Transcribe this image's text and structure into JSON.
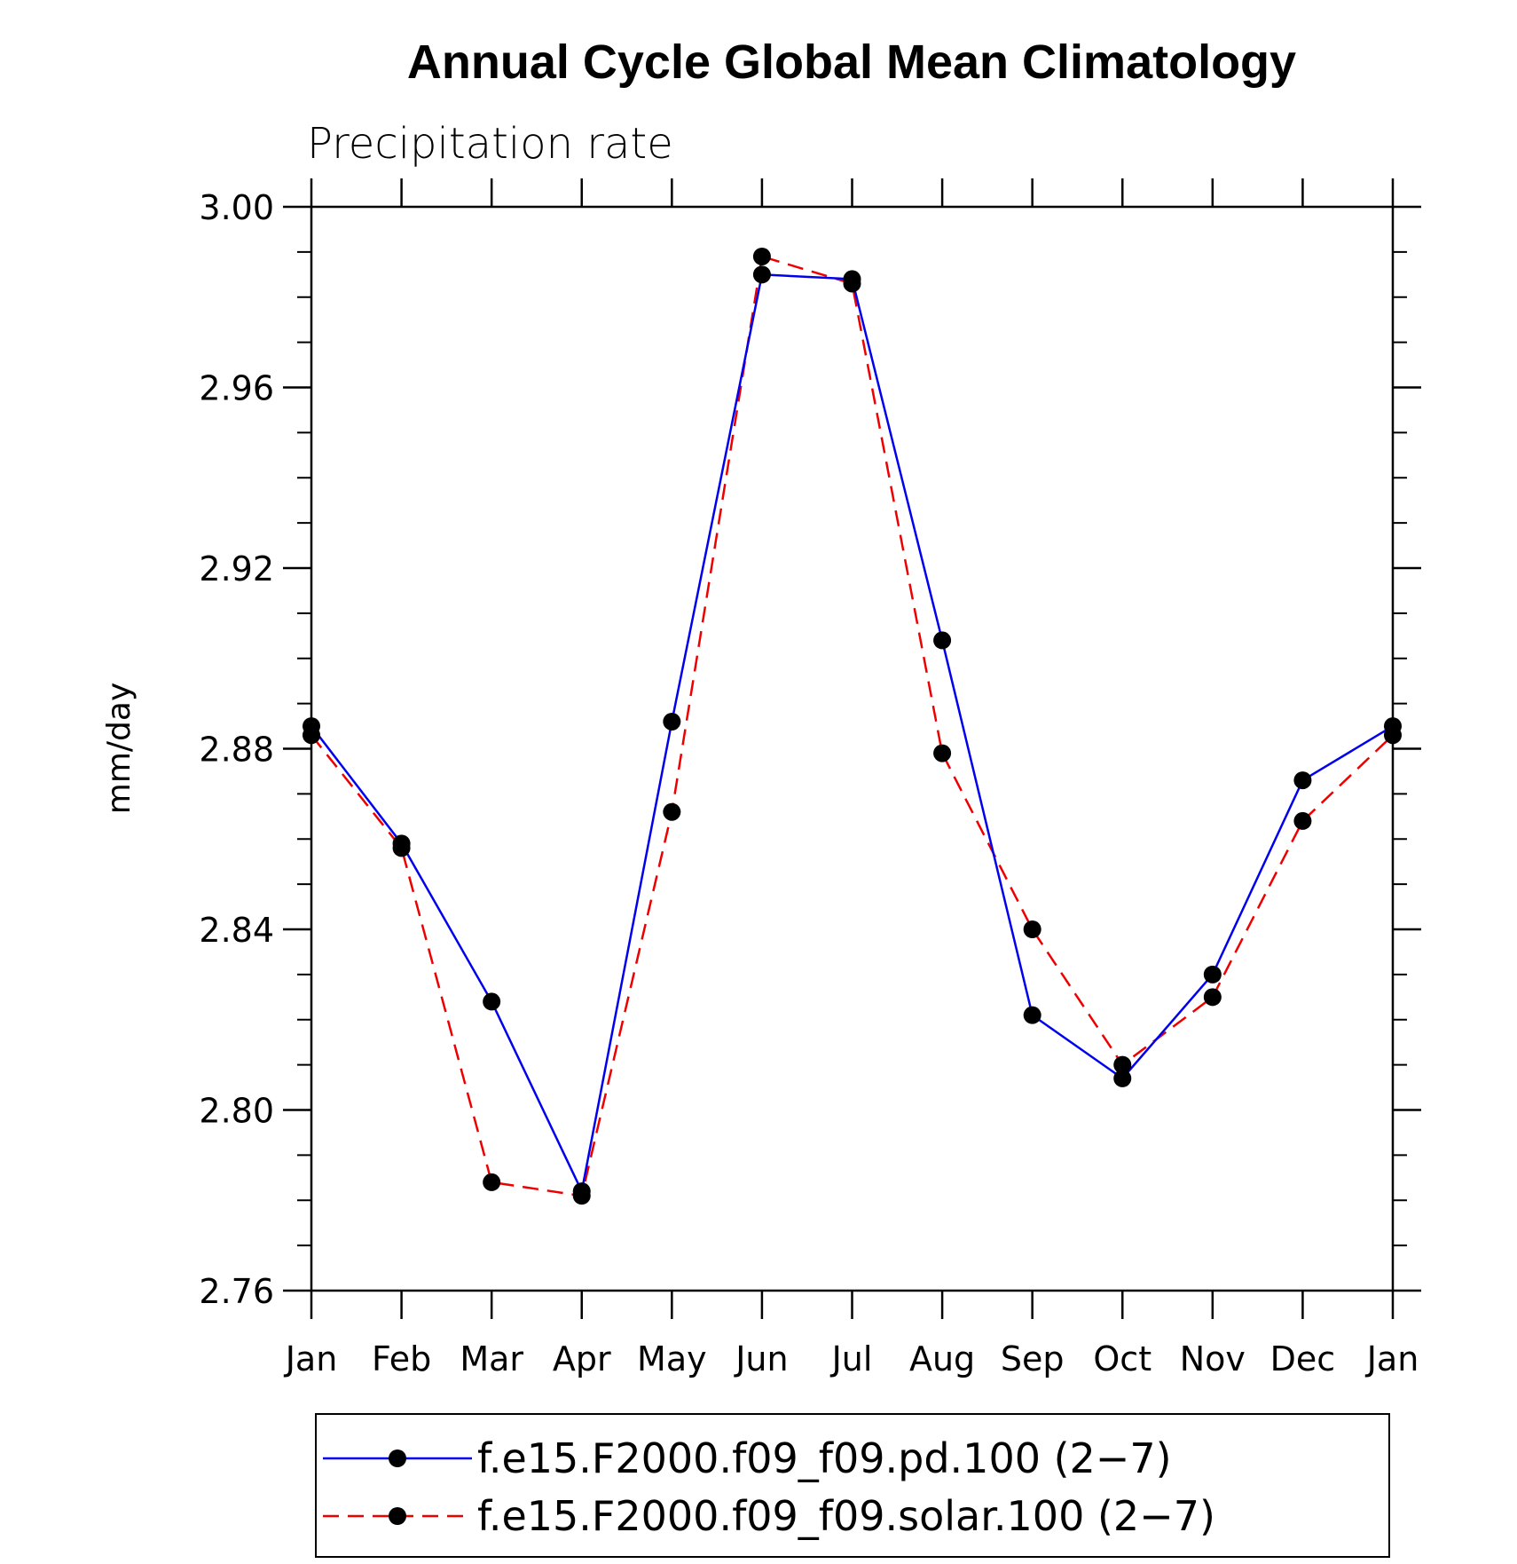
{
  "chart_data": {
    "type": "line",
    "title": "Annual Cycle Global Mean Climatology",
    "subtitle": "Precipitation rate",
    "xlabel": "",
    "ylabel": "mm/day",
    "categories": [
      "Jan",
      "Feb",
      "Mar",
      "Apr",
      "May",
      "Jun",
      "Jul",
      "Aug",
      "Sep",
      "Oct",
      "Nov",
      "Dec",
      "Jan"
    ],
    "ylim": [
      2.76,
      3.0
    ],
    "yticks": [
      "2.76",
      "2.80",
      "2.84",
      "2.88",
      "2.92",
      "2.96",
      "3.00"
    ],
    "grid": false,
    "legend_position": "bottom",
    "series": [
      {
        "name": "f.e15.F2000.f09_f09.pd.100 (2−7)",
        "color": "#0000ee",
        "line_style": "solid",
        "marker": "filled-circle",
        "values": [
          2.885,
          2.859,
          2.824,
          2.782,
          2.886,
          2.985,
          2.984,
          2.904,
          2.821,
          2.807,
          2.83,
          2.873,
          2.885
        ]
      },
      {
        "name": "f.e15.F2000.f09_f09.solar.100 (2−7)",
        "color": "#ee0000",
        "line_style": "dashed",
        "marker": "filled-circle",
        "values": [
          2.883,
          2.858,
          2.784,
          2.781,
          2.866,
          2.989,
          2.983,
          2.879,
          2.84,
          2.81,
          2.825,
          2.864,
          2.883
        ]
      }
    ]
  }
}
